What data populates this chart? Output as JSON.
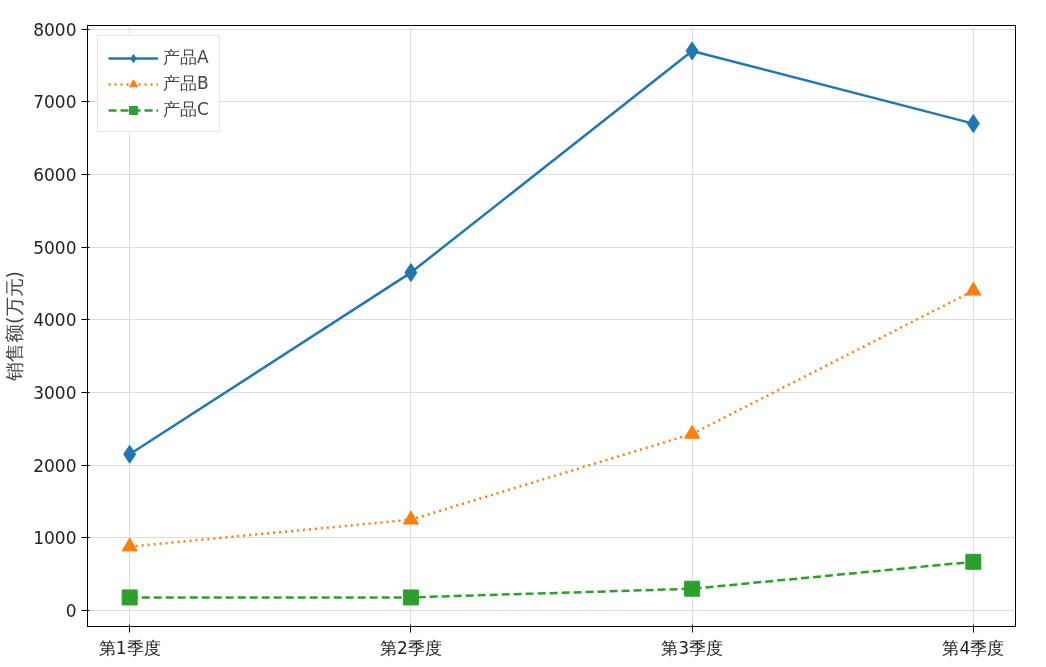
{
  "chart_data": {
    "type": "line",
    "ylabel": "销售额(万元)",
    "categories": [
      "第1季度",
      "第2季度",
      "第3季度",
      "第4季度"
    ],
    "series": [
      {
        "name": "产品A",
        "color": "#1f77b4",
        "values": [
          2150,
          4650,
          7700,
          6700
        ],
        "marker": "diamond",
        "line_style": "solid"
      },
      {
        "name": "产品B",
        "color": "#ff7f0e",
        "values": [
          880,
          1250,
          2430,
          4400
        ],
        "marker": "triangle",
        "line_style": "dotted"
      },
      {
        "name": "产品C",
        "color": "#2ca02c",
        "values": [
          180,
          180,
          300,
          670
        ],
        "marker": "square",
        "line_style": "dashed"
      }
    ],
    "ylim": [
      -220,
      8050
    ],
    "yticks": [
      0,
      1000,
      2000,
      3000,
      4000,
      5000,
      6000,
      7000,
      8000
    ],
    "grid": true,
    "legend": "top left"
  }
}
